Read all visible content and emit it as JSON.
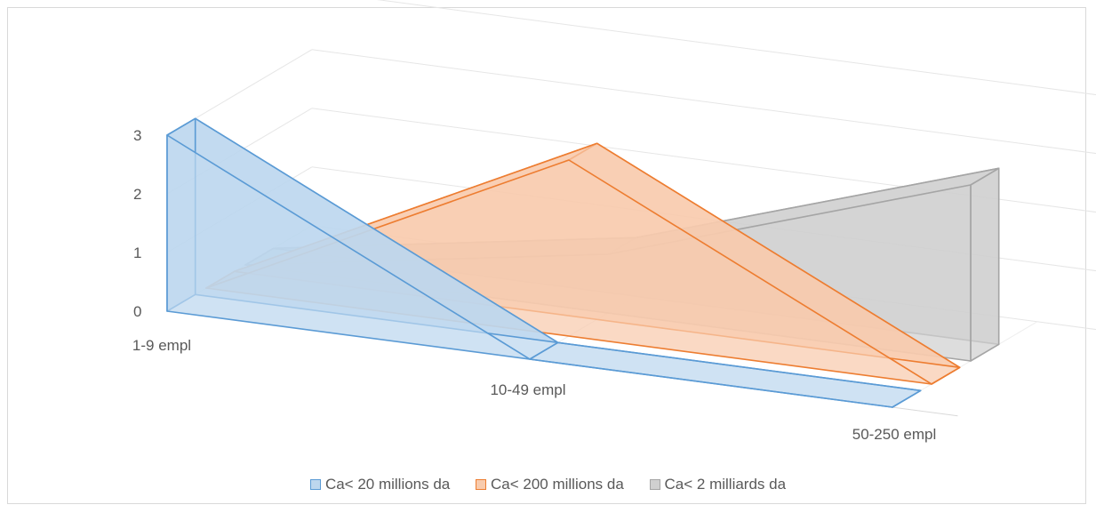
{
  "chart_data": {
    "type": "area",
    "subtype": "3d-area",
    "categories": [
      "1-9 empl",
      "10-49 empl",
      "50-250 empl"
    ],
    "yticks": [
      "0",
      "1",
      "2",
      "3"
    ],
    "ylim": [
      0,
      3
    ],
    "grid": true,
    "legend_position": "bottom",
    "series": [
      {
        "name": "Ca< 20 millions da",
        "values": [
          3,
          0,
          0
        ],
        "color": "#5b9bd5",
        "fill": "#bdd7ee"
      },
      {
        "name": "Ca< 200 millions da",
        "values": [
          0,
          3,
          0
        ],
        "color": "#ed7d31",
        "fill": "#f8cbad"
      },
      {
        "name": "Ca< 2 milliards da",
        "values": [
          0,
          1,
          3
        ],
        "color": "#a5a5a5",
        "fill": "#d0d0d0"
      }
    ]
  }
}
